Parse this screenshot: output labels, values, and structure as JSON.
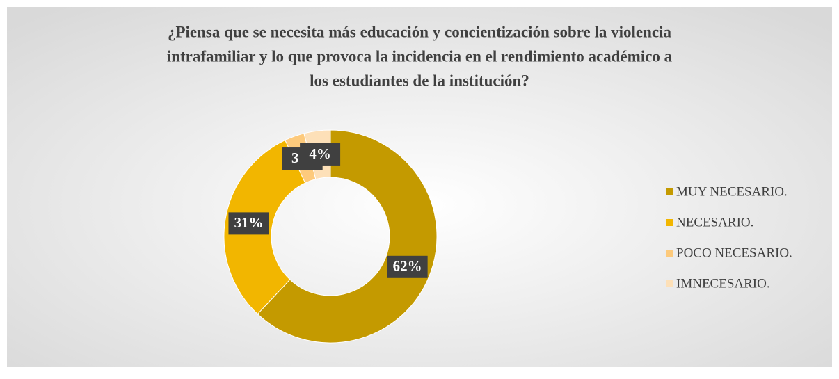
{
  "chart_data": {
    "type": "donut",
    "title_lines": [
      "¿Piensa que se necesita más educación y concientización sobre la violencia",
      "intrafamiliar y lo que provoca la incidencia en el rendimiento académico a",
      "los estudiantes de la institución?"
    ],
    "categories": [
      "MUY NECESARIO.",
      "NECESARIO.",
      "POCO NECESARIO.",
      "IMNECESARIO."
    ],
    "values": [
      62,
      31,
      3,
      4
    ],
    "value_labels": [
      "62%",
      "31%",
      "3%",
      "4%"
    ],
    "colors": [
      "#c49a00",
      "#f2b600",
      "#fdca7c",
      "#fde0b8"
    ],
    "legend": "right"
  }
}
